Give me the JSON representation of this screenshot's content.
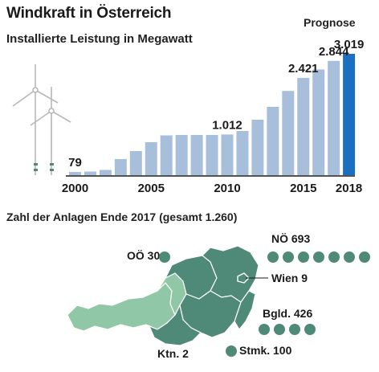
{
  "title": "Windkraft in Österreich",
  "subtitle": "Installierte Leistung in Megawatt",
  "forecast_label": "Prognose",
  "colors": {
    "bar": "#a8bfdc",
    "forecast_bar": "#1a6fc0",
    "map_dark": "#4f8a78",
    "map_light": "#8fc7a7",
    "dot": "#4f8a78",
    "turbine": "#b8b8b8"
  },
  "chart_data": {
    "type": "bar",
    "title": "Installierte Leistung in Megawatt",
    "categories": [
      "2000",
      "2001",
      "2002",
      "2003",
      "2004",
      "2005",
      "2006",
      "2007",
      "2008",
      "2009",
      "2010",
      "2011",
      "2012",
      "2013",
      "2014",
      "2015",
      "2016",
      "2017",
      "2018"
    ],
    "values": [
      79,
      90,
      130,
      400,
      600,
      820,
      990,
      1000,
      1000,
      1000,
      1012,
      1100,
      1380,
      1700,
      2095,
      2421,
      2630,
      2844,
      3019
    ],
    "highlight_index": 18,
    "x_tick_labels": [
      "2000",
      "2005",
      "2010",
      "2015",
      "2018"
    ],
    "data_labels": [
      {
        "category": "2000",
        "text": "79"
      },
      {
        "category": "2010",
        "text": "1.012"
      },
      {
        "category": "2015",
        "text": "2.421"
      },
      {
        "category": "2017",
        "text": "2.844"
      },
      {
        "category": "2018",
        "text": "3.019"
      }
    ],
    "ylim": [
      0,
      3019
    ],
    "grid": false
  },
  "map": {
    "title": "Zahl der Anlagen Ende 2017 (gesamt 1.260)",
    "regions": [
      {
        "label": "OÖ 30",
        "dots": 1
      },
      {
        "label": "NÖ 693",
        "dots": 7
      },
      {
        "label": "Wien 9",
        "dots": 0
      },
      {
        "label": "Bgld. 426",
        "dots": 4
      },
      {
        "label": "Stmk. 100",
        "dots": 1
      },
      {
        "label": "Ktn. 2",
        "dots": 0
      }
    ]
  }
}
